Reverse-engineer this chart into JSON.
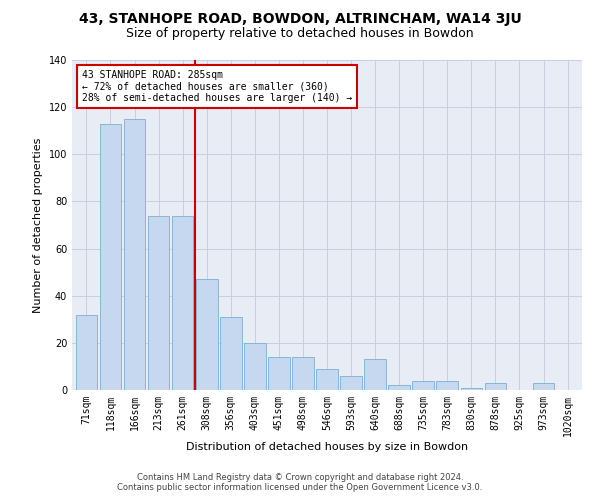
{
  "title": "43, STANHOPE ROAD, BOWDON, ALTRINCHAM, WA14 3JU",
  "subtitle": "Size of property relative to detached houses in Bowdon",
  "xlabel": "Distribution of detached houses by size in Bowdon",
  "ylabel": "Number of detached properties",
  "footer1": "Contains HM Land Registry data © Crown copyright and database right 2024.",
  "footer2": "Contains public sector information licensed under the Open Government Licence v3.0.",
  "categories": [
    "71sqm",
    "118sqm",
    "166sqm",
    "213sqm",
    "261sqm",
    "308sqm",
    "356sqm",
    "403sqm",
    "451sqm",
    "498sqm",
    "546sqm",
    "593sqm",
    "640sqm",
    "688sqm",
    "735sqm",
    "783sqm",
    "830sqm",
    "878sqm",
    "925sqm",
    "973sqm",
    "1020sqm"
  ],
  "values": [
    32,
    113,
    115,
    74,
    74,
    47,
    31,
    20,
    14,
    14,
    9,
    6,
    13,
    2,
    4,
    4,
    1,
    3,
    0,
    3,
    0
  ],
  "bar_color": "#c5d8f0",
  "bar_edge_color": "#7aafd4",
  "vline_color": "#cc0000",
  "vline_pos": 4.5,
  "annotation_line1": "43 STANHOPE ROAD: 285sqm",
  "annotation_line2": "← 72% of detached houses are smaller (360)",
  "annotation_line3": "28% of semi-detached houses are larger (140) →",
  "annotation_box_color": "#cc0000",
  "ylim": [
    0,
    140
  ],
  "yticks": [
    0,
    20,
    40,
    60,
    80,
    100,
    120,
    140
  ],
  "grid_color": "#c8d0e0",
  "bg_color": "#e8edf5",
  "title_fontsize": 10,
  "subtitle_fontsize": 9,
  "xlabel_fontsize": 8,
  "ylabel_fontsize": 8,
  "tick_fontsize": 7,
  "annotation_fontsize": 7,
  "footer_fontsize": 6
}
